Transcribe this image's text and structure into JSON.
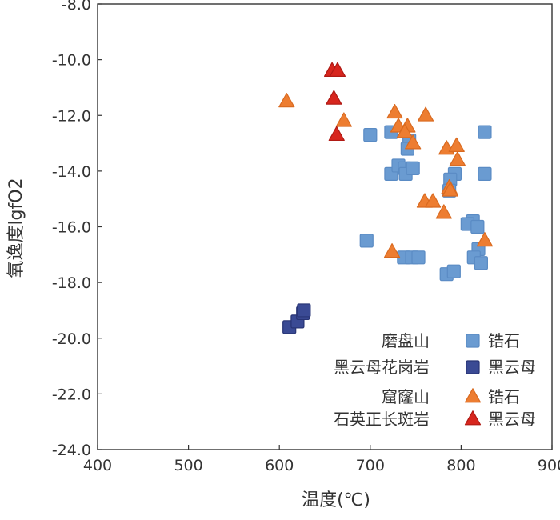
{
  "chart_data": {
    "type": "scatter",
    "title": "",
    "xlabel": "温度(℃)",
    "ylabel": "氧逸度lgfO2",
    "xlim": [
      400,
      900
    ],
    "ylim": [
      -24.0,
      -8.0
    ],
    "x_ticks": [
      "400",
      "500",
      "600",
      "700",
      "800",
      "900"
    ],
    "y_ticks": [
      "-24.0",
      "-22.0",
      "-20.0",
      "-18.0",
      "-16.0",
      "-14.0",
      "-12.0",
      "-10.0",
      "-8.0"
    ],
    "grid": false,
    "legend": {
      "position": "bottom-right",
      "groups": [
        {
          "title_lines": [
            "磨盘山",
            "黑云母花岗岩"
          ],
          "entries": [
            {
              "name": "锆石",
              "series": 0
            },
            {
              "name": "黑云母",
              "series": 1
            }
          ]
        },
        {
          "title_lines": [
            "窟窿山",
            "石英正长斑岩"
          ],
          "entries": [
            {
              "name": "锆石",
              "series": 2
            },
            {
              "name": "黑云母",
              "series": 3
            }
          ]
        }
      ]
    },
    "series": [
      {
        "name": "磨盘山黑云母花岗岩 锆石",
        "marker": "square",
        "color": "#6a9bd1",
        "stroke": "#5a8bc4",
        "points": [
          [
            700,
            -12.7
          ],
          [
            723,
            -12.6
          ],
          [
            743,
            -12.9
          ],
          [
            741,
            -13.2
          ],
          [
            826,
            -12.6
          ],
          [
            723,
            -14.1
          ],
          [
            731,
            -13.8
          ],
          [
            738,
            -13.9
          ],
          [
            746,
            -13.9
          ],
          [
            739,
            -14.1
          ],
          [
            747,
            -13.9
          ],
          [
            793,
            -14.1
          ],
          [
            788,
            -14.3
          ],
          [
            787,
            -14.7
          ],
          [
            826,
            -14.1
          ],
          [
            813,
            -15.8
          ],
          [
            807,
            -15.9
          ],
          [
            818,
            -16.0
          ],
          [
            819,
            -16.8
          ],
          [
            814,
            -17.1
          ],
          [
            822,
            -17.3
          ],
          [
            696,
            -16.5
          ],
          [
            737,
            -17.1
          ],
          [
            746,
            -17.1
          ],
          [
            753,
            -17.1
          ],
          [
            784,
            -17.7
          ],
          [
            792,
            -17.6
          ]
        ]
      },
      {
        "name": "磨盘山黑云母花岗岩 黑云母",
        "marker": "square",
        "color": "#3a4a94",
        "stroke": "#283475",
        "points": [
          [
            611,
            -19.6
          ],
          [
            620,
            -19.4
          ],
          [
            626,
            -19.1
          ],
          [
            627,
            -19.0
          ]
        ]
      },
      {
        "name": "窟窿山石英正长斑岩 锆石",
        "marker": "triangle",
        "color": "#ed7d31",
        "stroke": "#d96a20",
        "points": [
          [
            608,
            -11.5
          ],
          [
            671,
            -12.2
          ],
          [
            727,
            -11.9
          ],
          [
            731,
            -12.4
          ],
          [
            741,
            -12.4
          ],
          [
            738,
            -12.6
          ],
          [
            747,
            -13.0
          ],
          [
            761,
            -12.0
          ],
          [
            784,
            -13.2
          ],
          [
            795,
            -13.1
          ],
          [
            796,
            -13.6
          ],
          [
            787,
            -14.6
          ],
          [
            788,
            -14.7
          ],
          [
            760,
            -15.1
          ],
          [
            769,
            -15.1
          ],
          [
            781,
            -15.5
          ],
          [
            826,
            -16.5
          ],
          [
            724,
            -16.9
          ]
        ]
      },
      {
        "name": "窟窿山石英正长斑岩 黑云母",
        "marker": "triangle",
        "color": "#d7261e",
        "stroke": "#b01a14",
        "points": [
          [
            658,
            -10.4
          ],
          [
            664,
            -10.4
          ],
          [
            660,
            -11.4
          ],
          [
            663,
            -12.7
          ]
        ]
      }
    ]
  }
}
